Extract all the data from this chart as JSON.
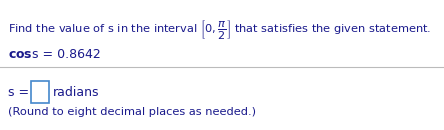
{
  "line1_math": "Find the value of s in the interval $\\left[0,\\dfrac{\\pi}{2}\\right]$ that satisfies the given statement.",
  "line2_bold": "cos",
  "line2_rest": " s = 0.8642",
  "line3_prefix": "s = ",
  "line3_suffix": " radians",
  "line4": "(Round to eight decimal places as needed.)",
  "bg_color": "#ffffff",
  "text_color": "#1a1a8c",
  "black_color": "#1a1a8c",
  "blue_color": "#1a1a8c",
  "divider_color": "#bbbbbb",
  "bold_color": "#1a1a8c",
  "fig_bg": "#ffffff",
  "box_edge_color": "#4488cc"
}
